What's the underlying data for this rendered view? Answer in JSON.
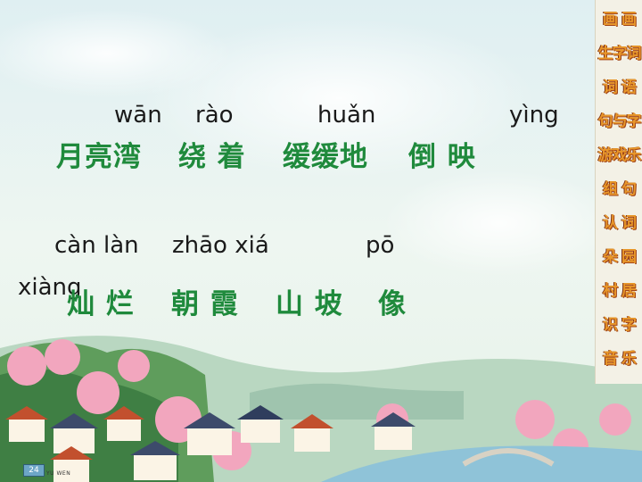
{
  "row1": {
    "pinyin": [
      "wān",
      "rào",
      "huǎn",
      "yìng"
    ],
    "hanzi": [
      "月亮湾",
      "绕 着",
      "缓缓地",
      "倒 映"
    ]
  },
  "row2": {
    "pinyin": [
      "càn làn",
      "zhāo xiá",
      "pō",
      "xiàng"
    ],
    "hanzi": [
      "灿 烂",
      "朝 霞",
      "山 坡",
      "像"
    ]
  },
  "sidebar": {
    "items": [
      "画 画",
      "生字词",
      "词 语",
      "句与字",
      "游戏乐",
      "组 句",
      "认 词",
      "朵 园",
      "村 居",
      "识 字",
      "音 乐"
    ]
  },
  "footer": {
    "page_number": "24",
    "label": "YU WEN"
  },
  "colors": {
    "hanzi": "#1f8a3c",
    "sidebar_text": "#e8972a"
  }
}
